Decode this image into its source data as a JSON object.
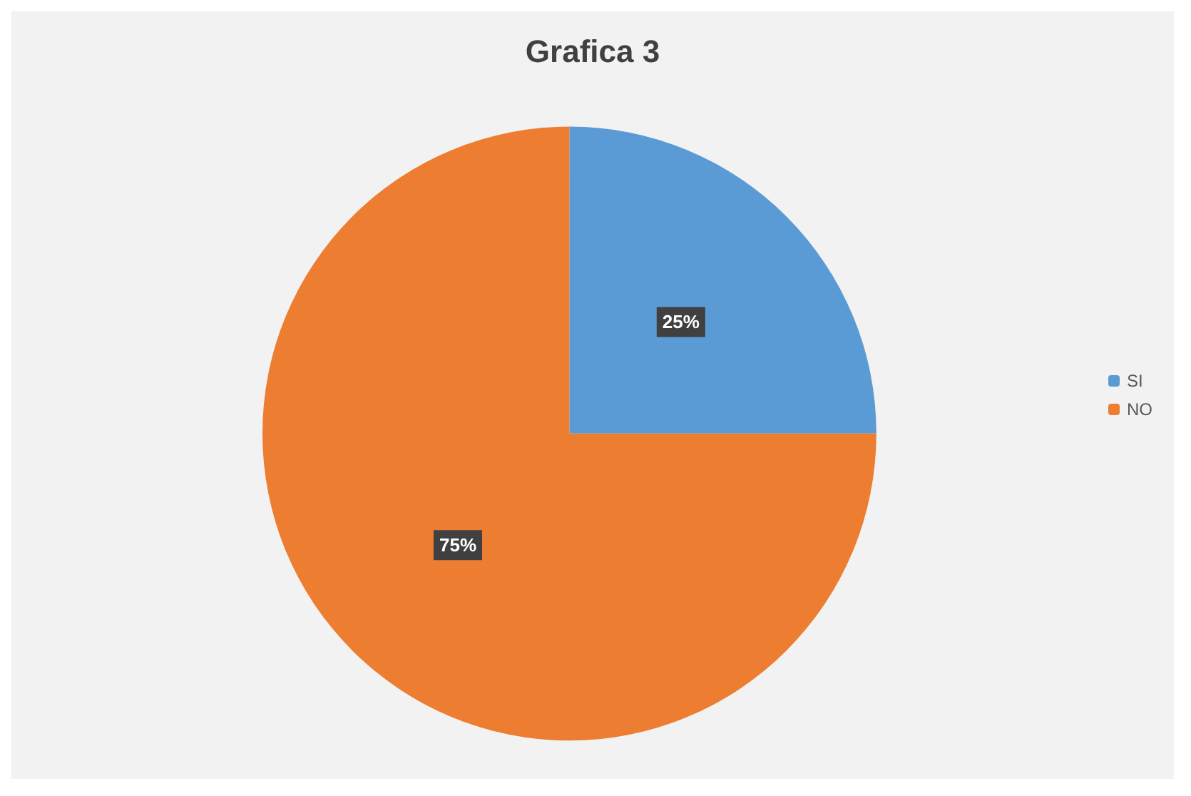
{
  "chart_data": {
    "type": "pie",
    "title": "Grafica 3",
    "categories": [
      "SI",
      "NO"
    ],
    "values": [
      25,
      75
    ],
    "colors": [
      "#5b9bd5",
      "#ed7d31"
    ],
    "value_labels": [
      "25%",
      "75%"
    ],
    "legend": "right"
  }
}
